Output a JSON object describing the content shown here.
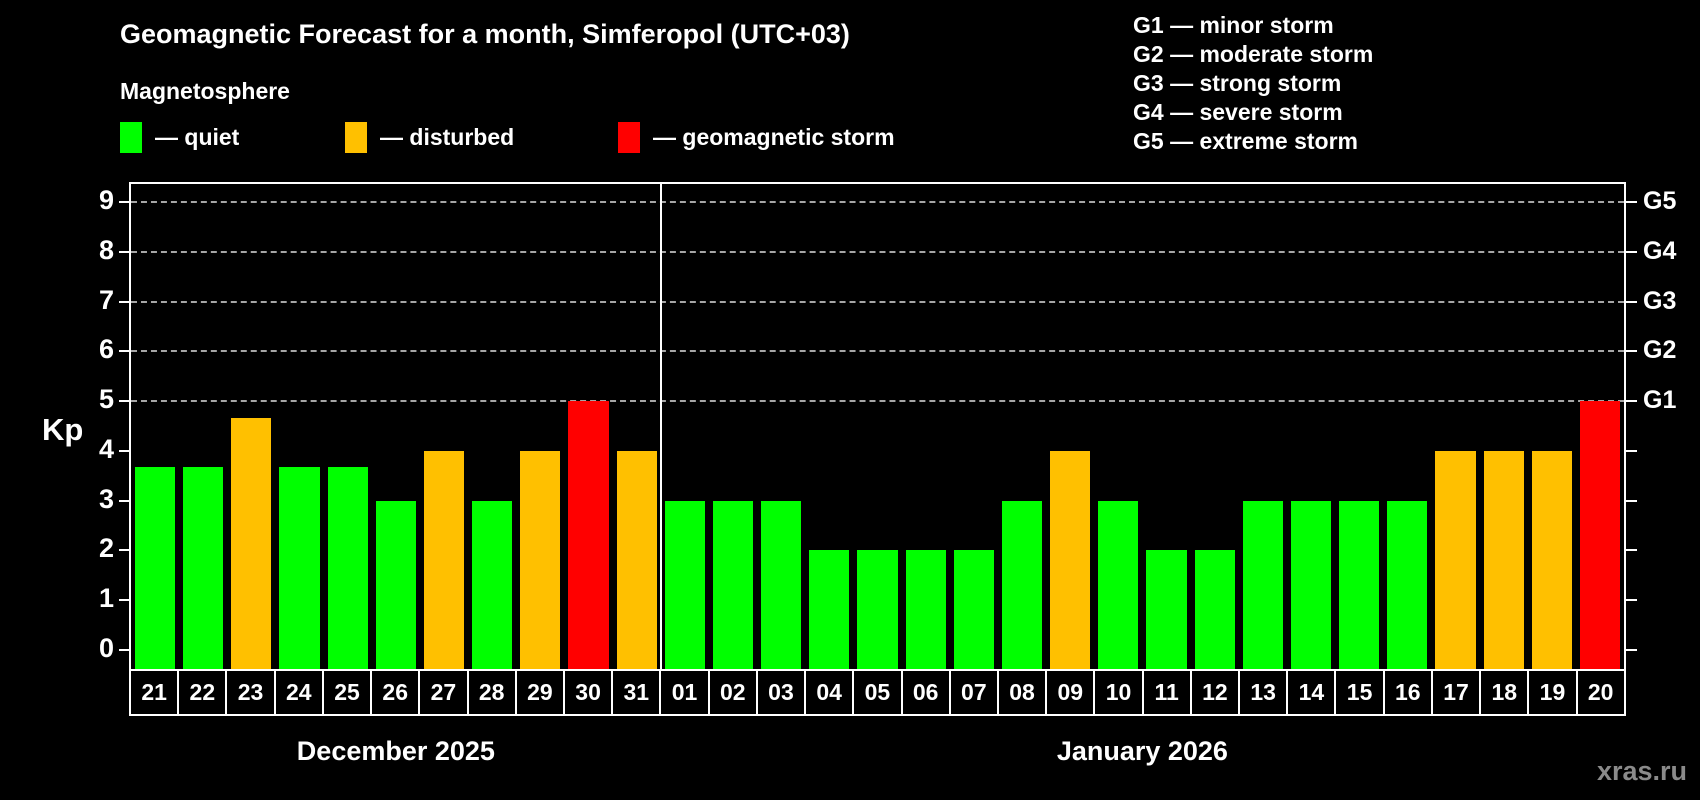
{
  "title": "Geomagnetic Forecast for a month, Simferopol (UTC+03)",
  "subtitle": "Magnetosphere",
  "legend": {
    "items": [
      {
        "key": "quiet",
        "label": "— quiet",
        "color": "#00ff00"
      },
      {
        "key": "disturbed",
        "label": "— disturbed",
        "color": "#ffc000"
      },
      {
        "key": "storm",
        "label": "— geomagnetic storm",
        "color": "#ff0000"
      }
    ]
  },
  "g_scale_legend": [
    "G1 — minor storm",
    "G2 — moderate storm",
    "G3 — strong storm",
    "G4 — severe storm",
    "G5 — extreme storm"
  ],
  "watermark": "xras.ru",
  "chart_data": {
    "type": "bar",
    "title": "Geomagnetic Forecast for a month, Simferopol (UTC+03)",
    "subtitle": "Magnetosphere",
    "ylabel": "Kp",
    "ylim": [
      0,
      9.4
    ],
    "yticks": [
      0,
      1,
      2,
      3,
      4,
      5,
      6,
      7,
      8,
      9
    ],
    "gridlines_at_kp": [
      5,
      6,
      7,
      8,
      9
    ],
    "grid": "dashed horizontal lines at storm levels only",
    "legend_position": "top",
    "right_axis": [
      {
        "kp": 5,
        "label": "G1"
      },
      {
        "kp": 6,
        "label": "G2"
      },
      {
        "kp": 7,
        "label": "G3"
      },
      {
        "kp": 8,
        "label": "G4"
      },
      {
        "kp": 9,
        "label": "G5"
      }
    ],
    "status_colors": {
      "quiet": "#00ff00",
      "disturbed": "#ffc000",
      "storm": "#ff0000"
    },
    "months": [
      {
        "label": "December 2025",
        "bars": [
          {
            "day": "21",
            "kp": 3.67,
            "status": "quiet"
          },
          {
            "day": "22",
            "kp": 3.67,
            "status": "quiet"
          },
          {
            "day": "23",
            "kp": 4.67,
            "status": "disturbed"
          },
          {
            "day": "24",
            "kp": 3.67,
            "status": "quiet"
          },
          {
            "day": "25",
            "kp": 3.67,
            "status": "quiet"
          },
          {
            "day": "26",
            "kp": 3,
            "status": "quiet"
          },
          {
            "day": "27",
            "kp": 4,
            "status": "disturbed"
          },
          {
            "day": "28",
            "kp": 3,
            "status": "quiet"
          },
          {
            "day": "29",
            "kp": 4,
            "status": "disturbed"
          },
          {
            "day": "30",
            "kp": 5,
            "status": "storm"
          },
          {
            "day": "31",
            "kp": 4,
            "status": "disturbed"
          }
        ]
      },
      {
        "label": "January 2026",
        "bars": [
          {
            "day": "01",
            "kp": 3,
            "status": "quiet"
          },
          {
            "day": "02",
            "kp": 3,
            "status": "quiet"
          },
          {
            "day": "03",
            "kp": 3,
            "status": "quiet"
          },
          {
            "day": "04",
            "kp": 2,
            "status": "quiet"
          },
          {
            "day": "05",
            "kp": 2,
            "status": "quiet"
          },
          {
            "day": "06",
            "kp": 2,
            "status": "quiet"
          },
          {
            "day": "07",
            "kp": 2,
            "status": "quiet"
          },
          {
            "day": "08",
            "kp": 3,
            "status": "quiet"
          },
          {
            "day": "09",
            "kp": 4,
            "status": "disturbed"
          },
          {
            "day": "10",
            "kp": 3,
            "status": "quiet"
          },
          {
            "day": "11",
            "kp": 2,
            "status": "quiet"
          },
          {
            "day": "12",
            "kp": 2,
            "status": "quiet"
          },
          {
            "day": "13",
            "kp": 3,
            "status": "quiet"
          },
          {
            "day": "14",
            "kp": 3,
            "status": "quiet"
          },
          {
            "day": "15",
            "kp": 3,
            "status": "quiet"
          },
          {
            "day": "16",
            "kp": 3,
            "status": "quiet"
          },
          {
            "day": "17",
            "kp": 4,
            "status": "disturbed"
          },
          {
            "day": "18",
            "kp": 4,
            "status": "disturbed"
          },
          {
            "day": "19",
            "kp": 4,
            "status": "disturbed"
          },
          {
            "day": "20",
            "kp": 5,
            "status": "storm"
          }
        ]
      }
    ]
  }
}
